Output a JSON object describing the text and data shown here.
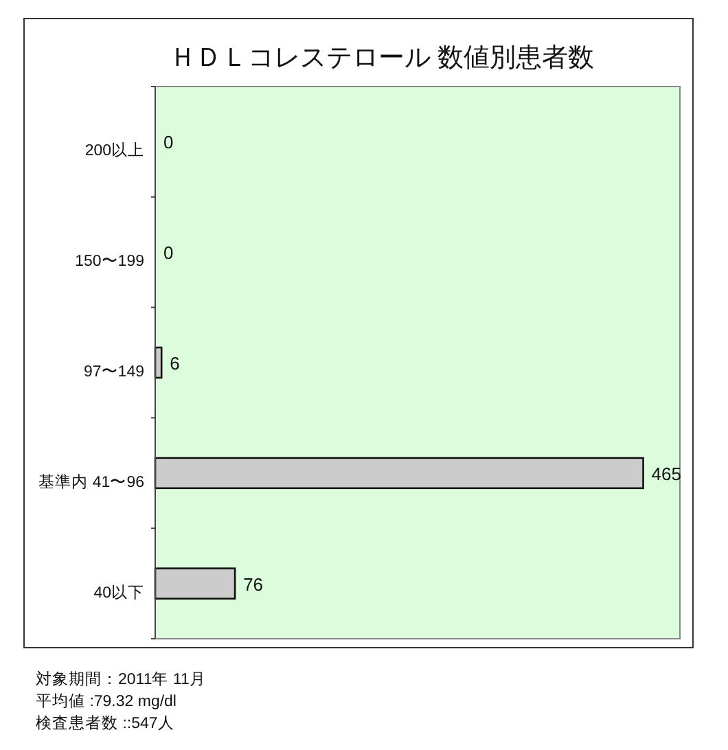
{
  "chart_data": {
    "type": "bar",
    "orientation": "horizontal",
    "title": "ＨＤＬコレステロール 数値別患者数",
    "categories": [
      "200以上",
      "150〜199",
      "97〜149",
      "基準内 41〜96",
      "40以下"
    ],
    "values": [
      0,
      0,
      6,
      465,
      76
    ],
    "color": "#cccccc",
    "xlim": [
      0,
      500
    ],
    "data_labels": true,
    "grid": false,
    "annotations": [
      "対象期間：2011年 11月",
      "平均値 :79.32 mg/dl",
      "検査患者数 ::547人"
    ]
  }
}
